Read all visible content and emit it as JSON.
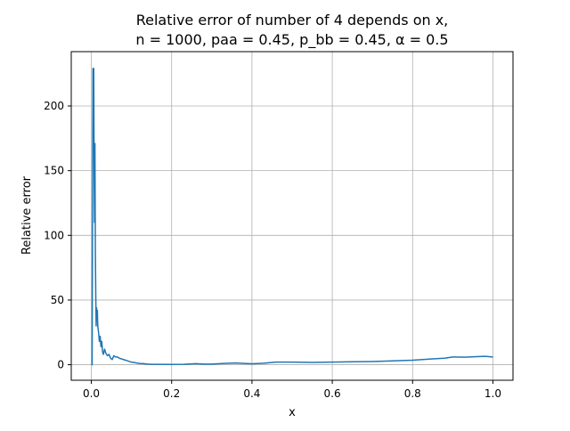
{
  "chart_data": {
    "type": "line",
    "title_line1": "Relative error of number of 4 depends on x,",
    "title_line2": "n = 1000, paa = 0.45, p_bb = 0.45, α = 0.5",
    "xlabel": "x",
    "ylabel": "Relative error",
    "xlim": [
      -0.05,
      1.05
    ],
    "ylim": [
      -12,
      242
    ],
    "xticks": [
      0.0,
      0.2,
      0.4,
      0.6,
      0.8,
      1.0
    ],
    "xtick_labels": [
      "0.0",
      "0.2",
      "0.4",
      "0.6",
      "0.8",
      "1.0"
    ],
    "yticks": [
      0,
      50,
      100,
      150,
      200
    ],
    "ytick_labels": [
      "0",
      "50",
      "100",
      "150",
      "200"
    ],
    "grid": true,
    "line_color": "#1f77b4",
    "series": [
      {
        "x": [
          0.0,
          0.002,
          0.003,
          0.004,
          0.005,
          0.006,
          0.007,
          0.008,
          0.009,
          0.01,
          0.011,
          0.012,
          0.013,
          0.014,
          0.015,
          0.016,
          0.018,
          0.02,
          0.022,
          0.024,
          0.026,
          0.028,
          0.03,
          0.033,
          0.036,
          0.04,
          0.044,
          0.048,
          0.052,
          0.056,
          0.06,
          0.065,
          0.07,
          0.08,
          0.09,
          0.1,
          0.11,
          0.12,
          0.13,
          0.14,
          0.15,
          0.17,
          0.2,
          0.23,
          0.26,
          0.28,
          0.3,
          0.33,
          0.36,
          0.38,
          0.4,
          0.43,
          0.46,
          0.5,
          0.55,
          0.6,
          0.65,
          0.7,
          0.75,
          0.8,
          0.85,
          0.88,
          0.9,
          0.93,
          0.96,
          0.98,
          1.0
        ],
        "y": [
          0,
          0,
          120,
          229,
          190,
          229,
          150,
          110,
          171,
          90,
          55,
          30,
          44,
          35,
          42,
          30,
          25,
          18,
          22,
          14,
          18,
          10,
          8,
          12,
          9,
          7,
          8,
          5,
          4,
          7,
          6,
          6,
          5,
          4,
          3,
          2,
          1.5,
          1,
          0.8,
          0.5,
          0.3,
          0.3,
          0.2,
          0.3,
          0.8,
          0.5,
          0.5,
          1.0,
          1.3,
          1.0,
          0.7,
          1.2,
          2.0,
          2.0,
          1.8,
          2.0,
          2.3,
          2.5,
          3.0,
          3.5,
          4.5,
          5.0,
          6.0,
          5.8,
          6.2,
          6.5,
          6.0
        ]
      }
    ]
  }
}
